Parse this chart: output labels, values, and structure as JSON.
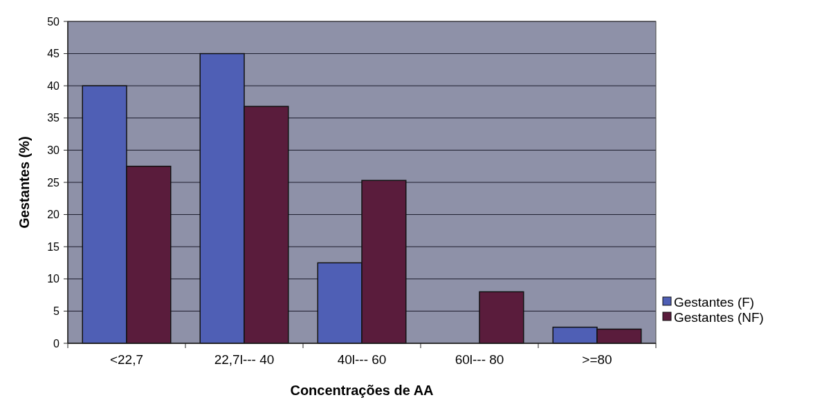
{
  "chart_data": {
    "type": "bar",
    "xlabel": "Concentrações de AA",
    "ylabel": "Gestantes (%)",
    "categories": [
      "<22,7",
      "22,7l--- 40",
      "40l--- 60",
      "60l--- 80",
      ">=80"
    ],
    "series": [
      {
        "name": "Gestantes (F)",
        "color": "#4f5fb5",
        "values": [
          40,
          45,
          12.5,
          0,
          2.5
        ]
      },
      {
        "name": "Gestantes (NF)",
        "color": "#5a1c3c",
        "values": [
          27.5,
          36.8,
          25.3,
          8.0,
          2.2
        ]
      }
    ],
    "ylim": [
      0,
      50
    ],
    "yticks": [
      0,
      5,
      10,
      15,
      20,
      25,
      30,
      35,
      40,
      45,
      50
    ],
    "grid": "y",
    "legend": "right"
  }
}
